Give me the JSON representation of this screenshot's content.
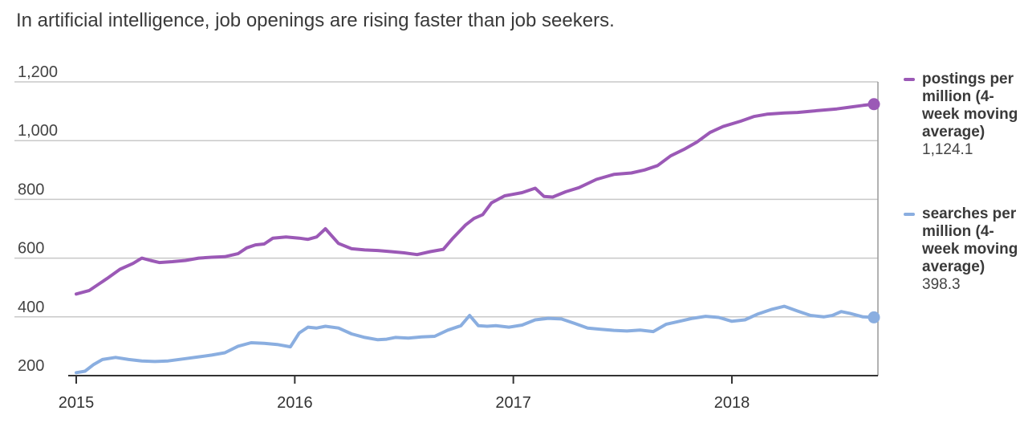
{
  "title": "In artificial intelligence, job openings are rising faster than job seekers.",
  "chart_data": {
    "type": "line",
    "title": "In artificial intelligence, job openings are rising faster than job seekers.",
    "xlabel": "",
    "ylabel": "",
    "xlim": [
      2015.0,
      2018.67
    ],
    "ylim": [
      170,
      1200
    ],
    "yticks": [
      {
        "value": 200,
        "label": "200"
      },
      {
        "value": 400,
        "label": "400"
      },
      {
        "value": 600,
        "label": "600"
      },
      {
        "value": 800,
        "label": "800"
      },
      {
        "value": 1000,
        "label": "1,000"
      },
      {
        "value": 1200,
        "label": "1,200"
      }
    ],
    "xticks": [
      {
        "value": 2015,
        "label": "2015"
      },
      {
        "value": 2016,
        "label": "2016"
      },
      {
        "value": 2017,
        "label": "2017"
      },
      {
        "value": 2018,
        "label": "2018"
      }
    ],
    "grid": "horizontal",
    "legend_position": "right",
    "series": [
      {
        "name": "postings per million (4-week moving average)",
        "color": "#9b59b6",
        "end_label": "1,124.1",
        "x": [
          2015.0,
          2015.06,
          2015.14,
          2015.2,
          2015.26,
          2015.3,
          2015.34,
          2015.38,
          2015.44,
          2015.5,
          2015.56,
          2015.62,
          2015.68,
          2015.74,
          2015.78,
          2015.82,
          2015.86,
          2015.9,
          2015.96,
          2016.02,
          2016.06,
          2016.1,
          2016.14,
          2016.2,
          2016.26,
          2016.32,
          2016.38,
          2016.44,
          2016.5,
          2016.56,
          2016.62,
          2016.68,
          2016.72,
          2016.78,
          2016.82,
          2016.86,
          2016.9,
          2016.96,
          2017.04,
          2017.1,
          2017.14,
          2017.18,
          2017.24,
          2017.3,
          2017.38,
          2017.46,
          2017.54,
          2017.6,
          2017.66,
          2017.72,
          2017.78,
          2017.84,
          2017.9,
          2017.96,
          2018.04,
          2018.1,
          2018.16,
          2018.24,
          2018.3,
          2018.36,
          2018.42,
          2018.48,
          2018.54,
          2018.6,
          2018.65
        ],
        "values": [
          478,
          490,
          530,
          562,
          582,
          600,
          592,
          585,
          588,
          592,
          600,
          603,
          605,
          615,
          635,
          645,
          648,
          668,
          672,
          668,
          664,
          672,
          700,
          650,
          632,
          628,
          626,
          622,
          618,
          612,
          622,
          630,
          665,
          712,
          735,
          748,
          788,
          812,
          823,
          838,
          810,
          808,
          826,
          840,
          868,
          885,
          890,
          900,
          915,
          948,
          970,
          995,
          1028,
          1048,
          1066,
          1082,
          1090,
          1094,
          1096,
          1100,
          1104,
          1108,
          1114,
          1120,
          1124.1
        ]
      },
      {
        "name": "searches per million (4-week moving average)",
        "color": "#8aaee0",
        "end_label": "398.3",
        "x": [
          2015.0,
          2015.04,
          2015.08,
          2015.12,
          2015.18,
          2015.24,
          2015.3,
          2015.36,
          2015.42,
          2015.5,
          2015.56,
          2015.62,
          2015.68,
          2015.74,
          2015.8,
          2015.86,
          2015.92,
          2015.98,
          2016.02,
          2016.06,
          2016.1,
          2016.14,
          2016.2,
          2016.26,
          2016.32,
          2016.38,
          2016.42,
          2016.46,
          2016.52,
          2016.58,
          2016.64,
          2016.7,
          2016.76,
          2016.8,
          2016.84,
          2016.88,
          2016.92,
          2016.98,
          2017.04,
          2017.1,
          2017.16,
          2017.22,
          2017.28,
          2017.34,
          2017.4,
          2017.46,
          2017.52,
          2017.58,
          2017.64,
          2017.7,
          2017.76,
          2017.82,
          2017.88,
          2017.94,
          2018.0,
          2018.06,
          2018.12,
          2018.18,
          2018.24,
          2018.3,
          2018.36,
          2018.42,
          2018.46,
          2018.5,
          2018.54,
          2018.6,
          2018.65
        ],
        "values": [
          210,
          215,
          238,
          255,
          262,
          255,
          250,
          248,
          250,
          258,
          264,
          270,
          278,
          300,
          312,
          310,
          306,
          298,
          345,
          365,
          362,
          368,
          362,
          342,
          330,
          322,
          324,
          330,
          328,
          332,
          334,
          355,
          370,
          405,
          370,
          368,
          370,
          365,
          372,
          390,
          395,
          393,
          378,
          362,
          358,
          354,
          352,
          355,
          350,
          375,
          385,
          395,
          402,
          398,
          385,
          390,
          410,
          425,
          436,
          420,
          405,
          400,
          405,
          418,
          412,
          400,
          398.3
        ]
      }
    ]
  }
}
